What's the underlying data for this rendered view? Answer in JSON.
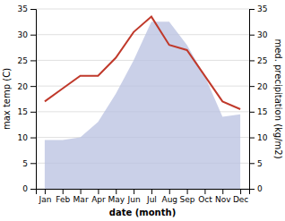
{
  "chart_data": {
    "type": "line",
    "xlabel": "date (month)",
    "ylabel": "max temp (C)",
    "y2label": "med. precipitation (kg/m2)",
    "categories": [
      "Jan",
      "Feb",
      "Mar",
      "Apr",
      "May",
      "Jun",
      "Jul",
      "Aug",
      "Sep",
      "Oct",
      "Nov",
      "Dec"
    ],
    "series": [
      {
        "type": "area",
        "color": "#b8c0e0",
        "values": [
          9.5,
          9.5,
          10.0,
          13.0,
          18.5,
          25.0,
          32.5,
          32.5,
          28.0,
          22.0,
          14.0,
          14.5
        ]
      },
      {
        "type": "line",
        "color": "#c0392b",
        "axis": "y2",
        "values": [
          17.0,
          19.5,
          22.0,
          22.0,
          25.5,
          30.5,
          33.5,
          28.0,
          27.0,
          22.0,
          17.0,
          15.5
        ]
      }
    ],
    "ylim": [
      0,
      35
    ],
    "yticks": [
      0,
      5,
      10,
      15,
      20,
      25,
      30,
      35
    ],
    "y2lim": [
      0,
      35
    ],
    "y2ticks": [
      0,
      5,
      10,
      15,
      20,
      25,
      30,
      35
    ],
    "grid": true
  }
}
